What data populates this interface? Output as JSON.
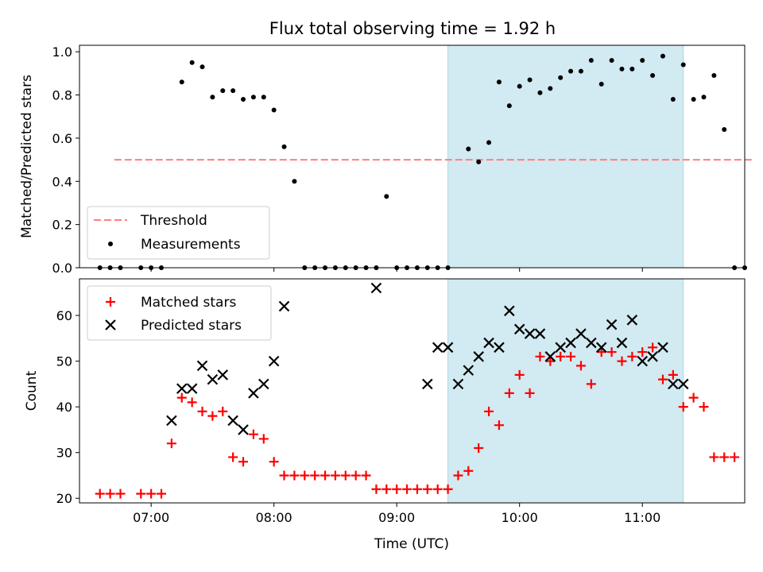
{
  "title": "Flux total observing time = 1.92 h",
  "colors": {
    "threshold": "#ff7f7f",
    "measurement": "#000000",
    "matched": "#ff0000",
    "predicted": "#000000",
    "highlight": "#add8e6"
  },
  "chart_data": [
    {
      "type": "scatter",
      "panel": "top",
      "ylabel": "Matched/Predicted stars",
      "ylim": [
        0,
        1.03
      ],
      "yticks": [
        "0.0",
        "0.2",
        "0.4",
        "0.6",
        "0.8",
        "1.0"
      ],
      "xticks_hidden": true,
      "highlight_span": [
        "09:25",
        "11:20"
      ],
      "legend": {
        "position": "lower-left",
        "entries": [
          "Threshold",
          "Measurements"
        ]
      },
      "threshold": {
        "name": "Threshold",
        "value": 0.5,
        "x_range": [
          "06:42",
          "11:55"
        ],
        "style": "dashed"
      },
      "series": [
        {
          "name": "Measurements",
          "marker": "dot",
          "points": [
            [
              "06:35",
              0
            ],
            [
              "06:40",
              0
            ],
            [
              "06:45",
              0
            ],
            [
              "06:55",
              0
            ],
            [
              "07:00",
              0
            ],
            [
              "07:05",
              0
            ],
            [
              "07:15",
              0.86
            ],
            [
              "07:20",
              0.95
            ],
            [
              "07:25",
              0.93
            ],
            [
              "07:30",
              0.79
            ],
            [
              "07:35",
              0.82
            ],
            [
              "07:40",
              0.82
            ],
            [
              "07:45",
              0.78
            ],
            [
              "07:50",
              0.79
            ],
            [
              "07:55",
              0.79
            ],
            [
              "08:00",
              0.73
            ],
            [
              "08:05",
              0.56
            ],
            [
              "08:10",
              0.4
            ],
            [
              "08:15",
              0
            ],
            [
              "08:20",
              0
            ],
            [
              "08:25",
              0
            ],
            [
              "08:30",
              0
            ],
            [
              "08:35",
              0
            ],
            [
              "08:40",
              0
            ],
            [
              "08:45",
              0
            ],
            [
              "08:50",
              0
            ],
            [
              "08:55",
              0.33
            ],
            [
              "09:00",
              0
            ],
            [
              "09:05",
              0
            ],
            [
              "09:10",
              0
            ],
            [
              "09:15",
              0
            ],
            [
              "09:20",
              0
            ],
            [
              "09:25",
              0
            ],
            [
              "09:35",
              0.55
            ],
            [
              "09:40",
              0.49
            ],
            [
              "09:45",
              0.58
            ],
            [
              "09:50",
              0.86
            ],
            [
              "09:55",
              0.75
            ],
            [
              "10:00",
              0.84
            ],
            [
              "10:05",
              0.87
            ],
            [
              "10:10",
              0.81
            ],
            [
              "10:15",
              0.83
            ],
            [
              "10:20",
              0.88
            ],
            [
              "10:25",
              0.91
            ],
            [
              "10:30",
              0.91
            ],
            [
              "10:35",
              0.96
            ],
            [
              "10:40",
              0.85
            ],
            [
              "10:45",
              0.96
            ],
            [
              "10:50",
              0.92
            ],
            [
              "10:55",
              0.92
            ],
            [
              "11:00",
              0.96
            ],
            [
              "11:05",
              0.89
            ],
            [
              "11:10",
              0.98
            ],
            [
              "11:15",
              0.78
            ],
            [
              "11:20",
              0.94
            ],
            [
              "11:25",
              0.78
            ],
            [
              "11:30",
              0.79
            ],
            [
              "11:35",
              0.89
            ],
            [
              "11:40",
              0.64
            ],
            [
              "11:45",
              0
            ],
            [
              "11:50",
              0
            ]
          ]
        }
      ]
    },
    {
      "type": "scatter",
      "panel": "bottom",
      "ylabel": "Count",
      "xlabel": "Time (UTC)",
      "ylim": [
        19,
        68
      ],
      "yticks": [
        "20",
        "30",
        "40",
        "50",
        "60"
      ],
      "xlim": [
        "06:25",
        "11:50"
      ],
      "xticks": [
        "07:00",
        "08:00",
        "09:00",
        "10:00",
        "11:00"
      ],
      "highlight_span": [
        "09:25",
        "11:20"
      ],
      "legend": {
        "position": "top-left",
        "entries": [
          "Matched stars",
          "Predicted stars"
        ]
      },
      "series": [
        {
          "name": "Matched stars",
          "marker": "plus",
          "points": [
            [
              "06:35",
              21
            ],
            [
              "06:40",
              21
            ],
            [
              "06:45",
              21
            ],
            [
              "06:55",
              21
            ],
            [
              "07:00",
              21
            ],
            [
              "07:05",
              21
            ],
            [
              "07:10",
              32
            ],
            [
              "07:15",
              42
            ],
            [
              "07:20",
              41
            ],
            [
              "07:25",
              39
            ],
            [
              "07:30",
              38
            ],
            [
              "07:35",
              39
            ],
            [
              "07:40",
              29
            ],
            [
              "07:45",
              28
            ],
            [
              "07:50",
              34
            ],
            [
              "07:55",
              33
            ],
            [
              "08:00",
              28
            ],
            [
              "08:05",
              25
            ],
            [
              "08:10",
              25
            ],
            [
              "08:15",
              25
            ],
            [
              "08:20",
              25
            ],
            [
              "08:25",
              25
            ],
            [
              "08:30",
              25
            ],
            [
              "08:35",
              25
            ],
            [
              "08:40",
              25
            ],
            [
              "08:45",
              25
            ],
            [
              "08:50",
              22
            ],
            [
              "08:55",
              22
            ],
            [
              "09:00",
              22
            ],
            [
              "09:05",
              22
            ],
            [
              "09:10",
              22
            ],
            [
              "09:15",
              22
            ],
            [
              "09:20",
              22
            ],
            [
              "09:25",
              22
            ],
            [
              "09:30",
              25
            ],
            [
              "09:35",
              26
            ],
            [
              "09:40",
              31
            ],
            [
              "09:45",
              39
            ],
            [
              "09:50",
              36
            ],
            [
              "09:55",
              43
            ],
            [
              "10:00",
              47
            ],
            [
              "10:05",
              43
            ],
            [
              "10:10",
              51
            ],
            [
              "10:15",
              50
            ],
            [
              "10:20",
              51
            ],
            [
              "10:25",
              51
            ],
            [
              "10:30",
              49
            ],
            [
              "10:35",
              45
            ],
            [
              "10:40",
              52
            ],
            [
              "10:45",
              52
            ],
            [
              "10:50",
              50
            ],
            [
              "10:55",
              51
            ],
            [
              "11:00",
              52
            ],
            [
              "11:05",
              53
            ],
            [
              "11:10",
              46
            ],
            [
              "11:15",
              47
            ],
            [
              "11:20",
              40
            ],
            [
              "11:25",
              42
            ],
            [
              "11:30",
              40
            ],
            [
              "11:35",
              29
            ],
            [
              "11:40",
              29
            ],
            [
              "11:45",
              29
            ]
          ]
        },
        {
          "name": "Predicted stars",
          "marker": "x",
          "points": [
            [
              "07:10",
              37
            ],
            [
              "07:15",
              44
            ],
            [
              "07:20",
              44
            ],
            [
              "07:25",
              49
            ],
            [
              "07:30",
              46
            ],
            [
              "07:35",
              47
            ],
            [
              "07:40",
              37
            ],
            [
              "07:45",
              35
            ],
            [
              "07:50",
              43
            ],
            [
              "07:55",
              45
            ],
            [
              "08:00",
              50
            ],
            [
              "08:05",
              62
            ],
            [
              "08:50",
              66
            ],
            [
              "09:15",
              45
            ],
            [
              "09:20",
              53
            ],
            [
              "09:25",
              53
            ],
            [
              "09:30",
              45
            ],
            [
              "09:35",
              48
            ],
            [
              "09:40",
              51
            ],
            [
              "09:45",
              54
            ],
            [
              "09:50",
              53
            ],
            [
              "09:55",
              61
            ],
            [
              "10:00",
              57
            ],
            [
              "10:05",
              56
            ],
            [
              "10:10",
              56
            ],
            [
              "10:15",
              51
            ],
            [
              "10:20",
              53
            ],
            [
              "10:25",
              54
            ],
            [
              "10:30",
              56
            ],
            [
              "10:35",
              54
            ],
            [
              "10:40",
              53
            ],
            [
              "10:45",
              58
            ],
            [
              "10:50",
              54
            ],
            [
              "10:55",
              59
            ],
            [
              "11:00",
              50
            ],
            [
              "11:05",
              51
            ],
            [
              "11:10",
              53
            ],
            [
              "11:15",
              45
            ],
            [
              "11:20",
              45
            ]
          ]
        }
      ]
    }
  ]
}
